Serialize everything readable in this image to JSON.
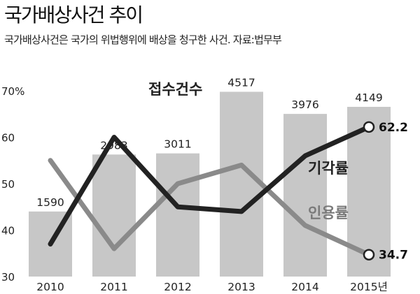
{
  "header": {
    "title": "국가배상사건 추이",
    "subtitle": "국가배상사건은 국가의 위법행위에 배상을 청구한 사건. 자료:법무부"
  },
  "colors": {
    "bar": "#c7c7c7",
    "reject_line": "#222222",
    "accept_line": "#8a8a8a",
    "accept_label": "#7a7a7a"
  },
  "chart_data": {
    "type": "bar",
    "title": "국가배상사건 추이",
    "categories": [
      "2010",
      "2011",
      "2012",
      "2013",
      "2014",
      "2015년"
    ],
    "series": [
      {
        "name": "접수건수",
        "type": "bar",
        "values": [
          1590,
          2983,
          3011,
          4517,
          3976,
          4149
        ]
      },
      {
        "name": "기각률",
        "type": "line",
        "values": [
          37,
          60,
          45,
          44,
          56,
          62.2
        ]
      },
      {
        "name": "인용률",
        "type": "line",
        "values": [
          55,
          36,
          50,
          54,
          41,
          34.7
        ]
      }
    ],
    "y_left_ticks": [
      "70%",
      "60",
      "50",
      "40",
      "30"
    ],
    "ylim": [
      30,
      70
    ],
    "bar_ylim": [
      0,
      4900
    ],
    "end_labels": {
      "reject": "62.2",
      "accept": "34.7"
    },
    "grid": false,
    "legend": "none"
  }
}
